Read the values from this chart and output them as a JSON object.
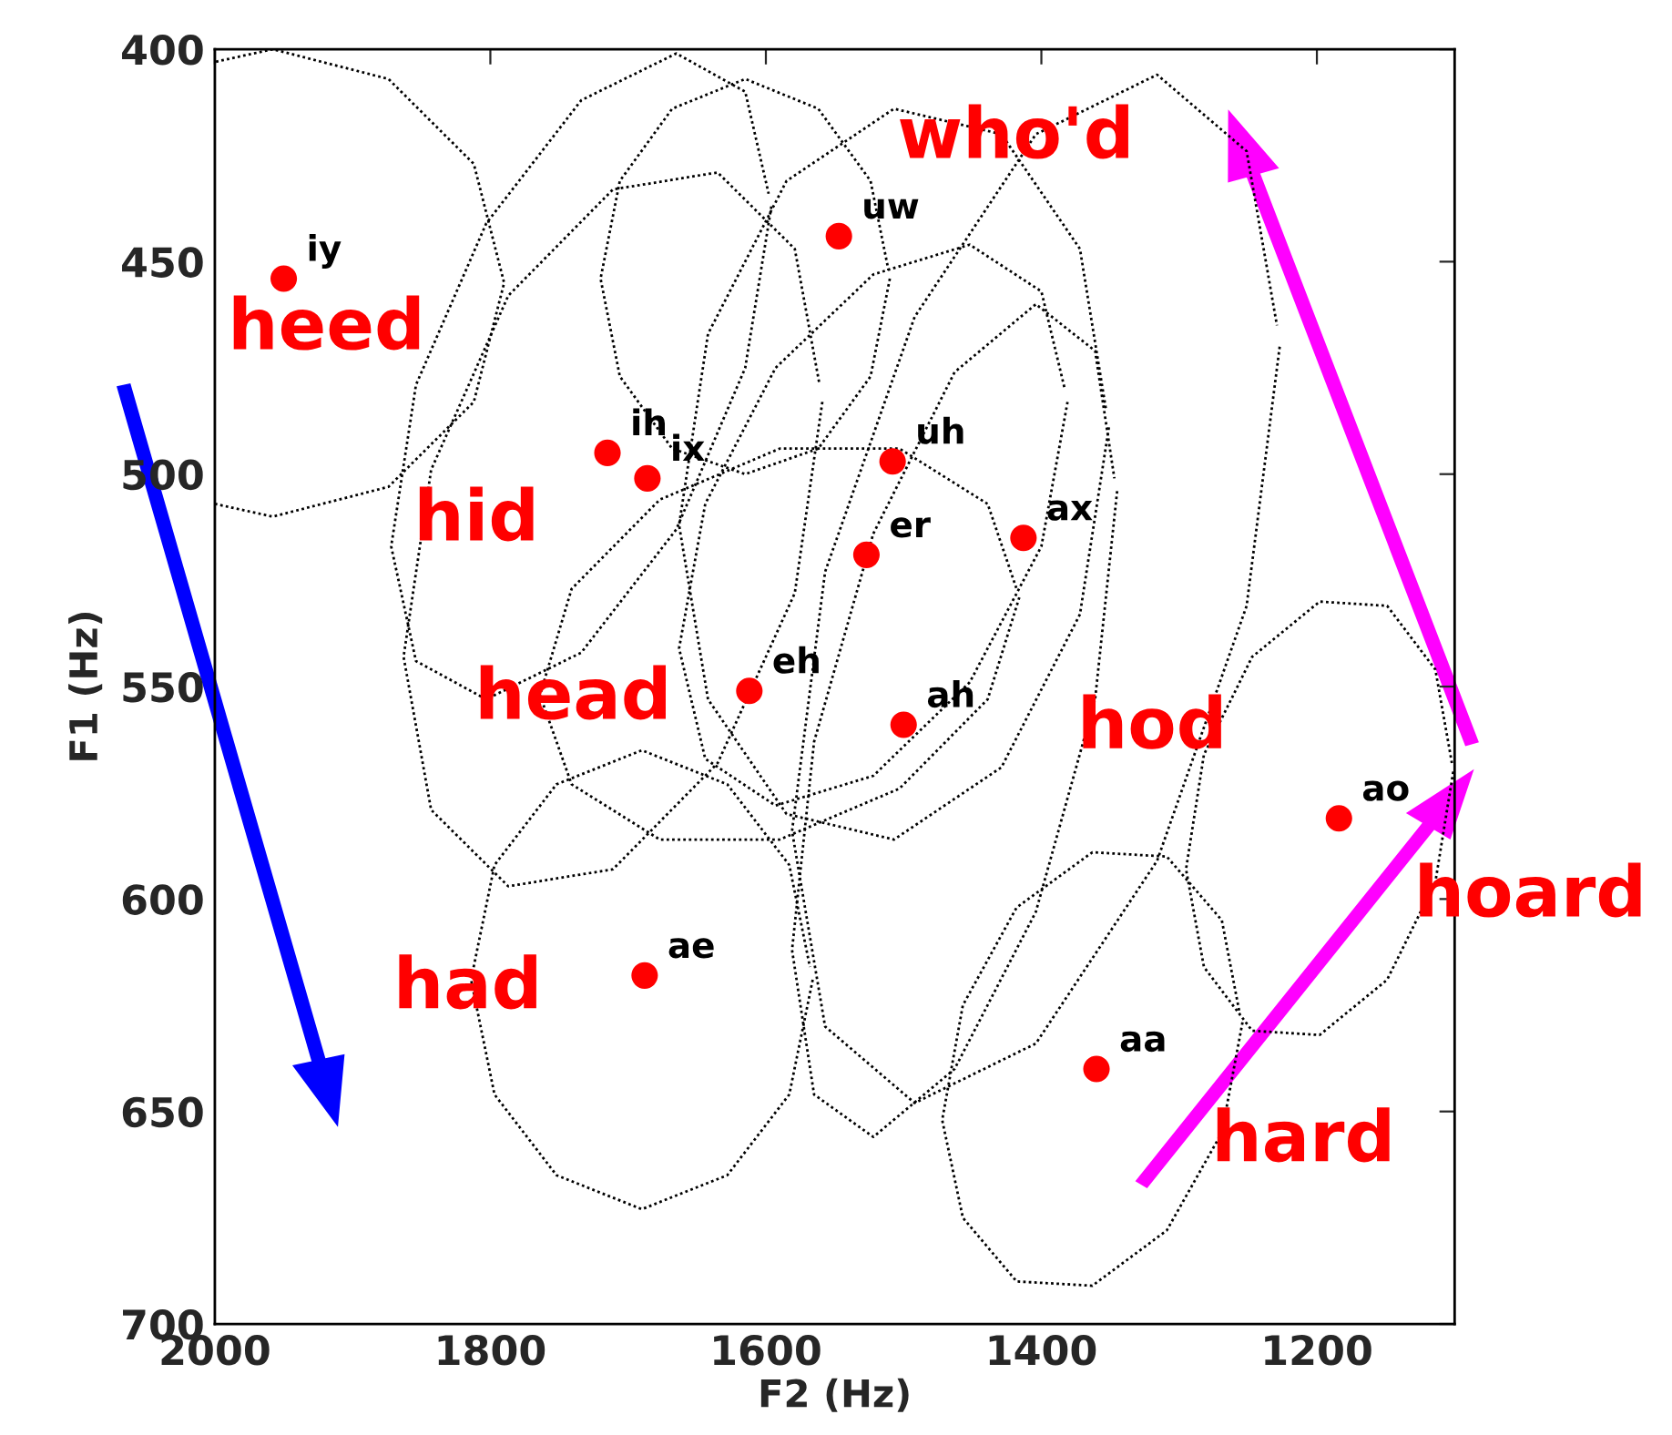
{
  "chart_data": {
    "type": "scatter",
    "xlabel": "F2 (Hz)",
    "ylabel": "F1 (Hz)",
    "xlim": [
      2000,
      1100
    ],
    "ylim": [
      700,
      400
    ],
    "xticks": [
      2000,
      1800,
      1600,
      1400,
      1200
    ],
    "yticks": [
      400,
      450,
      500,
      550,
      600,
      650,
      700
    ],
    "grid": false,
    "series": [
      {
        "type": "scatter",
        "color": "#ff0000",
        "marker": "circle",
        "x": [
          1950,
          1547,
          1715,
          1686,
          1508,
          1527,
          1413,
          1612,
          1500,
          1184,
          1688,
          1360
        ],
        "values": [
          454,
          444,
          495,
          501,
          497,
          519,
          515,
          551,
          559,
          581,
          618,
          640
        ],
        "value_labels": [
          "iy",
          "uw",
          "ih",
          "ix",
          "uh",
          "er",
          "ax",
          "eh",
          "ah",
          "ao",
          "ae",
          "aa"
        ]
      },
      {
        "type": "line",
        "color": "#000000",
        "line_style": "dotted",
        "marker": "none",
        "x": [
          2000,
          1958,
          1874,
          1812,
          1790,
          1812,
          1874,
          1958,
          2000
        ],
        "values": [
          507,
          510,
          503,
          483,
          455,
          427,
          407,
          400,
          403
        ]
      },
      {
        "type": "line",
        "color": "#000000",
        "line_style": "dotted",
        "marker": "none",
        "x": [
          1510,
          1524,
          1562,
          1615,
          1668,
          1706,
          1720,
          1706,
          1668,
          1615,
          1562,
          1524,
          1511
        ],
        "values": [
          454,
          477,
          494,
          500,
          494,
          477,
          454,
          431,
          414,
          407,
          414,
          431,
          452
        ]
      },
      {
        "type": "line",
        "color": "#000000",
        "line_style": "dotted",
        "marker": "none",
        "x": [
          1596,
          1615,
          1665,
          1734,
          1803,
          1854,
          1872,
          1854,
          1803,
          1734,
          1665,
          1615,
          1598
        ],
        "values": [
          437,
          475,
          513,
          542,
          553,
          544,
          517,
          479,
          441,
          412,
          401,
          410,
          434
        ]
      },
      {
        "type": "line",
        "color": "#000000",
        "line_style": "dotted",
        "marker": "none",
        "x": [
          1559,
          1579,
          1635,
          1711,
          1787,
          1843,
          1863,
          1843,
          1787,
          1711,
          1635,
          1579,
          1561
        ],
        "values": [
          483,
          528,
          568,
          593,
          597,
          579,
          543,
          499,
          458,
          433,
          429,
          447,
          479
        ]
      },
      {
        "type": "line",
        "color": "#000000",
        "line_style": "dotted",
        "marker": "none",
        "x": [
          1351,
          1372,
          1429,
          1507,
          1585,
          1642,
          1663,
          1642,
          1585,
          1507,
          1429,
          1372,
          1353
        ],
        "values": [
          489,
          533,
          569,
          586,
          580,
          553,
          512,
          467,
          431,
          414,
          420,
          447,
          485
        ]
      },
      {
        "type": "line",
        "color": "#000000",
        "line_style": "dotted",
        "marker": "none",
        "x": [
          1381,
          1400,
          1452,
          1522,
          1593,
          1644,
          1663,
          1644,
          1593,
          1522,
          1452,
          1400,
          1383
        ],
        "values": [
          483,
          517,
          549,
          571,
          578,
          567,
          541,
          507,
          475,
          453,
          446,
          457,
          480
        ]
      },
      {
        "type": "line",
        "color": "#000000",
        "line_style": "dotted",
        "marker": "none",
        "x": [
          1345,
          1361,
          1404,
          1463,
          1522,
          1565,
          1581,
          1565,
          1522,
          1463,
          1404,
          1361,
          1347
        ],
        "values": [
          504,
          553,
          603,
          640,
          656,
          646,
          612,
          563,
          514,
          476,
          460,
          471,
          501
        ]
      },
      {
        "type": "line",
        "color": "#000000",
        "line_style": "dotted",
        "marker": "none",
        "x": [
          1416,
          1439,
          1503,
          1590,
          1677,
          1741,
          1764,
          1741,
          1677,
          1590,
          1503,
          1439,
          1418
        ],
        "values": [
          529,
          553,
          574,
          586,
          586,
          573,
          552,
          527,
          506,
          494,
          494,
          507,
          527
        ]
      },
      {
        "type": "line",
        "color": "#000000",
        "line_style": "dotted",
        "marker": "none",
        "x": [
          1227,
          1251,
          1316,
          1404,
          1492,
          1557,
          1581,
          1557,
          1492,
          1404,
          1316,
          1251,
          1229
        ],
        "values": [
          470,
          531,
          591,
          634,
          648,
          630,
          584,
          523,
          463,
          420,
          406,
          424,
          465
        ]
      },
      {
        "type": "line",
        "color": "#000000",
        "line_style": "dotted",
        "marker": "none",
        "x": [
          1566,
          1583,
          1628,
          1690,
          1752,
          1797,
          1814,
          1797,
          1752,
          1690,
          1628,
          1583,
          1568
        ],
        "values": [
          619,
          646,
          665,
          673,
          665,
          646,
          619,
          592,
          573,
          565,
          573,
          592,
          616
        ]
      },
      {
        "type": "line",
        "color": "#000000",
        "line_style": "dotted",
        "marker": "none",
        "x": [
          1254,
          1269,
          1309,
          1363,
          1418,
          1457,
          1472,
          1457,
          1418,
          1363,
          1309,
          1269,
          1256
        ],
        "values": [
          629,
          655,
          678,
          691,
          690,
          675,
          652,
          625,
          602,
          589,
          590,
          605,
          627
        ]
      },
      {
        "type": "line",
        "color": "#000000",
        "line_style": "dotted",
        "marker": "none",
        "x": [
          1101,
          1114,
          1149,
          1198,
          1247,
          1282,
          1295,
          1282,
          1247,
          1198,
          1149,
          1114,
          1102
        ],
        "values": [
          570,
          596,
          619,
          632,
          631,
          616,
          593,
          566,
          543,
          530,
          531,
          546,
          568
        ]
      }
    ],
    "annotations": [
      "heed",
      "hid",
      "head",
      "had",
      "who'd",
      "hod",
      "hard",
      "hoard"
    ]
  }
}
